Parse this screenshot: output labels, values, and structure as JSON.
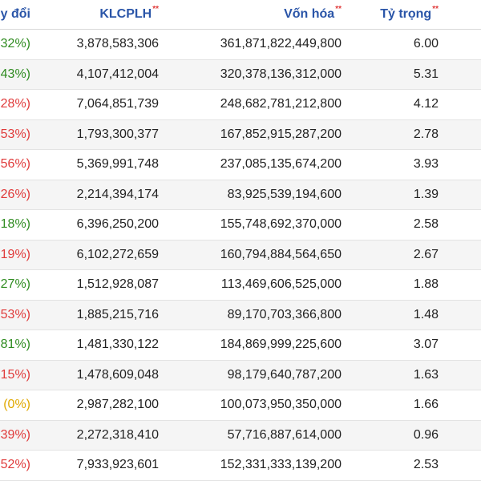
{
  "header": {
    "change_label": "y đổi",
    "klcplh_label": "KLCPLH",
    "klcplh_mark": "**",
    "vonhoa_label": "Vốn hóa",
    "vonhoa_mark": "**",
    "tytrong_label": "Tỷ trọng",
    "tytrong_mark": "**"
  },
  "colors": {
    "header_text": "#2a55a8",
    "up": "#2e8b1f",
    "down": "#e03a3a",
    "flat": "#e0a800",
    "row_alt": "#f5f5f5"
  },
  "rows": [
    {
      "change": "32%)",
      "trend": "up",
      "klcplh": "3,878,583,306",
      "vonhoa": "361,871,822,449,800",
      "tytrong": "6.00"
    },
    {
      "change": "43%)",
      "trend": "up",
      "klcplh": "4,107,412,004",
      "vonhoa": "320,378,136,312,000",
      "tytrong": "5.31"
    },
    {
      "change": "28%)",
      "trend": "down",
      "klcplh": "7,064,851,739",
      "vonhoa": "248,682,781,212,800",
      "tytrong": "4.12"
    },
    {
      "change": "53%)",
      "trend": "down",
      "klcplh": "1,793,300,377",
      "vonhoa": "167,852,915,287,200",
      "tytrong": "2.78"
    },
    {
      "change": "56%)",
      "trend": "down",
      "klcplh": "5,369,991,748",
      "vonhoa": "237,085,135,674,200",
      "tytrong": "3.93"
    },
    {
      "change": "26%)",
      "trend": "down",
      "klcplh": "2,214,394,174",
      "vonhoa": "83,925,539,194,600",
      "tytrong": "1.39"
    },
    {
      "change": "18%)",
      "trend": "up",
      "klcplh": "6,396,250,200",
      "vonhoa": "155,748,692,370,000",
      "tytrong": "2.58"
    },
    {
      "change": "19%)",
      "trend": "down",
      "klcplh": "6,102,272,659",
      "vonhoa": "160,794,884,564,650",
      "tytrong": "2.67"
    },
    {
      "change": "27%)",
      "trend": "up",
      "klcplh": "1,512,928,087",
      "vonhoa": "113,469,606,525,000",
      "tytrong": "1.88"
    },
    {
      "change": "53%)",
      "trend": "down",
      "klcplh": "1,885,215,716",
      "vonhoa": "89,170,703,366,800",
      "tytrong": "1.48"
    },
    {
      "change": "81%)",
      "trend": "up",
      "klcplh": "1,481,330,122",
      "vonhoa": "184,869,999,225,600",
      "tytrong": "3.07"
    },
    {
      "change": "15%)",
      "trend": "down",
      "klcplh": "1,478,609,048",
      "vonhoa": "98,179,640,787,200",
      "tytrong": "1.63"
    },
    {
      "change": "(0%)",
      "trend": "flat",
      "klcplh": "2,987,282,100",
      "vonhoa": "100,073,950,350,000",
      "tytrong": "1.66"
    },
    {
      "change": "39%)",
      "trend": "down",
      "klcplh": "2,272,318,410",
      "vonhoa": "57,716,887,614,000",
      "tytrong": "0.96"
    },
    {
      "change": "52%)",
      "trend": "down",
      "klcplh": "7,933,923,601",
      "vonhoa": "152,331,333,139,200",
      "tytrong": "2.53"
    }
  ]
}
